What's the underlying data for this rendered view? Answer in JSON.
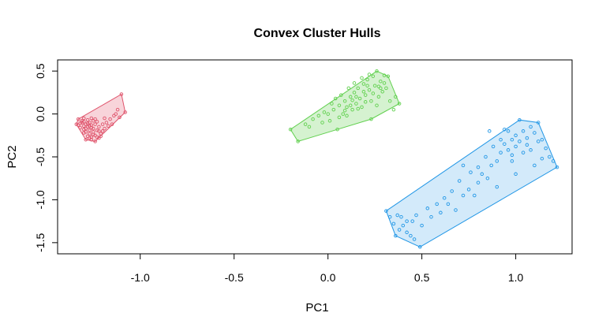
{
  "chart_data": {
    "type": "scatter",
    "title": "Convex Cluster Hulls",
    "xlabel": "PC1",
    "ylabel": "PC2",
    "xlim": [
      -1.44,
      1.3
    ],
    "ylim": [
      -1.63,
      0.63
    ],
    "x_ticks": [
      -1.0,
      -0.5,
      0.0,
      0.5,
      1.0
    ],
    "x_tick_labels": [
      "-1.0",
      "-0.5",
      "0.0",
      "0.5",
      "1.0"
    ],
    "y_ticks": [
      -1.5,
      -1.0,
      -0.5,
      0.0,
      0.5
    ],
    "y_tick_labels": [
      "-1.5",
      "-1.0",
      "-0.5",
      "0.0",
      "0.5"
    ],
    "grid": false,
    "legend": "none",
    "series": [
      {
        "color": "#DF536B",
        "fill": "#F8D4DA",
        "hull": [
          [
            -1.33,
            -0.06
          ],
          [
            -1.1,
            0.23
          ],
          [
            -1.08,
            0.02
          ],
          [
            -1.24,
            -0.32
          ],
          [
            -1.29,
            -0.3
          ],
          [
            -1.34,
            -0.12
          ]
        ],
        "points": [
          [
            -1.33,
            -0.06
          ],
          [
            -1.31,
            -0.08
          ],
          [
            -1.3,
            -0.05
          ],
          [
            -1.28,
            -0.07
          ],
          [
            -1.27,
            -0.1
          ],
          [
            -1.29,
            -0.12
          ],
          [
            -1.32,
            -0.11
          ],
          [
            -1.34,
            -0.12
          ],
          [
            -1.3,
            -0.14
          ],
          [
            -1.28,
            -0.15
          ],
          [
            -1.26,
            -0.13
          ],
          [
            -1.25,
            -0.17
          ],
          [
            -1.27,
            -0.19
          ],
          [
            -1.3,
            -0.18
          ],
          [
            -1.32,
            -0.16
          ],
          [
            -1.29,
            -0.21
          ],
          [
            -1.27,
            -0.23
          ],
          [
            -1.25,
            -0.21
          ],
          [
            -1.23,
            -0.19
          ],
          [
            -1.24,
            -0.25
          ],
          [
            -1.26,
            -0.27
          ],
          [
            -1.28,
            -0.26
          ],
          [
            -1.29,
            -0.3
          ],
          [
            -1.26,
            -0.3
          ],
          [
            -1.24,
            -0.32
          ],
          [
            -1.22,
            -0.28
          ],
          [
            -1.21,
            -0.23
          ],
          [
            -1.22,
            -0.15
          ],
          [
            -1.2,
            -0.12
          ],
          [
            -1.23,
            -0.09
          ],
          [
            -1.25,
            -0.08
          ],
          [
            -1.19,
            -0.17
          ],
          [
            -1.2,
            -0.2
          ],
          [
            -1.18,
            -0.1
          ],
          [
            -1.16,
            -0.06
          ],
          [
            -1.15,
            -0.12
          ],
          [
            -1.14,
            -0.02
          ],
          [
            -1.12,
            0.05
          ],
          [
            -1.1,
            0.23
          ],
          [
            -1.08,
            0.02
          ],
          [
            -1.11,
            -0.04
          ],
          [
            -1.26,
            -0.05
          ],
          [
            -1.31,
            -0.1
          ],
          [
            -1.28,
            -0.11
          ],
          [
            -1.26,
            -0.16
          ],
          [
            -1.24,
            -0.12
          ],
          [
            -1.22,
            -0.2
          ],
          [
            -1.25,
            -0.24
          ],
          [
            -1.27,
            -0.14
          ],
          [
            -1.3,
            -0.09
          ],
          [
            -1.29,
            -0.17
          ],
          [
            -1.21,
            -0.26
          ],
          [
            -1.23,
            -0.27
          ],
          [
            -1.17,
            -0.14
          ],
          [
            -1.19,
            -0.05
          ],
          [
            -1.13,
            0.0
          ],
          [
            -1.27,
            -0.28
          ],
          [
            -1.3,
            -0.22
          ],
          [
            -1.33,
            -0.13
          ],
          [
            -1.24,
            -0.06
          ]
        ]
      },
      {
        "color": "#61D04F",
        "fill": "#D5F2D0",
        "hull": [
          [
            -0.2,
            -0.18
          ],
          [
            0.26,
            0.5
          ],
          [
            0.32,
            0.44
          ],
          [
            0.38,
            0.12
          ],
          [
            0.23,
            -0.06
          ],
          [
            0.05,
            -0.18
          ],
          [
            -0.16,
            -0.32
          ]
        ],
        "points": [
          [
            -0.2,
            -0.18
          ],
          [
            -0.16,
            -0.32
          ],
          [
            -0.12,
            -0.12
          ],
          [
            -0.08,
            -0.06
          ],
          [
            -0.05,
            -0.02
          ],
          [
            -0.02,
            0.02
          ],
          [
            0.01,
            -0.08
          ],
          [
            0.03,
            0.05
          ],
          [
            0.05,
            -0.18
          ],
          [
            0.06,
            0.1
          ],
          [
            0.08,
            0.0
          ],
          [
            0.09,
            0.15
          ],
          [
            0.1,
            0.08
          ],
          [
            0.12,
            0.2
          ],
          [
            0.13,
            0.05
          ],
          [
            0.14,
            0.25
          ],
          [
            0.15,
            0.12
          ],
          [
            0.16,
            0.3
          ],
          [
            0.17,
            0.18
          ],
          [
            0.18,
            0.08
          ],
          [
            0.19,
            0.35
          ],
          [
            0.2,
            0.22
          ],
          [
            0.21,
            0.4
          ],
          [
            0.22,
            0.28
          ],
          [
            0.23,
            -0.06
          ],
          [
            0.23,
            0.15
          ],
          [
            0.24,
            0.44
          ],
          [
            0.25,
            0.33
          ],
          [
            0.26,
            0.5
          ],
          [
            0.27,
            0.2
          ],
          [
            0.28,
            0.38
          ],
          [
            0.29,
            0.26
          ],
          [
            0.3,
            0.45
          ],
          [
            0.31,
            0.3
          ],
          [
            0.32,
            0.44
          ],
          [
            0.33,
            0.15
          ],
          [
            0.35,
            0.05
          ],
          [
            0.36,
            0.2
          ],
          [
            0.38,
            0.12
          ],
          [
            0.02,
            0.12
          ],
          [
            0.04,
            0.18
          ],
          [
            0.07,
            0.22
          ],
          [
            0.11,
            0.3
          ],
          [
            0.14,
            0.36
          ],
          [
            0.18,
            0.42
          ],
          [
            0.22,
            0.46
          ],
          [
            0.0,
            0.0
          ],
          [
            -0.03,
            -0.1
          ],
          [
            0.06,
            -0.04
          ],
          [
            0.1,
            -0.02
          ],
          [
            0.12,
            0.1
          ],
          [
            0.16,
            0.06
          ],
          [
            0.2,
            0.14
          ],
          [
            0.24,
            0.24
          ],
          [
            0.27,
            0.32
          ],
          [
            0.3,
            0.36
          ],
          [
            0.15,
            0.2
          ],
          [
            0.19,
            0.26
          ],
          [
            0.09,
            0.04
          ],
          [
            0.13,
            0.16
          ],
          [
            -0.1,
            -0.15
          ],
          [
            0.26,
            0.1
          ],
          [
            0.28,
            0.3
          ],
          [
            0.21,
            0.33
          ]
        ]
      },
      {
        "color": "#2297E6",
        "fill": "#D3EAFA",
        "hull": [
          [
            0.31,
            -1.13
          ],
          [
            1.02,
            -0.07
          ],
          [
            1.12,
            -0.1
          ],
          [
            1.22,
            -0.62
          ],
          [
            0.49,
            -1.55
          ],
          [
            0.36,
            -1.42
          ]
        ],
        "points": [
          [
            0.31,
            -1.13
          ],
          [
            0.33,
            -1.2
          ],
          [
            0.35,
            -1.28
          ],
          [
            0.36,
            -1.42
          ],
          [
            0.38,
            -1.35
          ],
          [
            0.4,
            -1.3
          ],
          [
            0.42,
            -1.38
          ],
          [
            0.44,
            -1.42
          ],
          [
            0.46,
            -1.46
          ],
          [
            0.49,
            -1.55
          ],
          [
            0.45,
            -1.25
          ],
          [
            0.5,
            -1.3
          ],
          [
            0.55,
            -1.2
          ],
          [
            0.6,
            -1.15
          ],
          [
            0.64,
            -1.05
          ],
          [
            0.68,
            -1.12
          ],
          [
            0.72,
            -0.95
          ],
          [
            0.75,
            -0.88
          ],
          [
            0.78,
            -0.95
          ],
          [
            0.8,
            -0.8
          ],
          [
            0.82,
            -0.7
          ],
          [
            0.85,
            -0.75
          ],
          [
            0.87,
            -0.6
          ],
          [
            0.9,
            -0.55
          ],
          [
            0.92,
            -0.45
          ],
          [
            0.94,
            -0.35
          ],
          [
            0.96,
            -0.42
          ],
          [
            0.98,
            -0.3
          ],
          [
            1.0,
            -0.25
          ],
          [
            1.02,
            -0.07
          ],
          [
            1.04,
            -0.2
          ],
          [
            1.06,
            -0.28
          ],
          [
            1.08,
            -0.15
          ],
          [
            1.1,
            -0.22
          ],
          [
            1.12,
            -0.1
          ],
          [
            1.14,
            -0.3
          ],
          [
            1.16,
            -0.4
          ],
          [
            1.18,
            -0.5
          ],
          [
            1.2,
            -0.55
          ],
          [
            1.22,
            -0.62
          ],
          [
            0.96,
            -0.2
          ],
          [
            0.98,
            -0.48
          ],
          [
            1.0,
            -0.38
          ],
          [
            1.02,
            -0.32
          ],
          [
            1.04,
            -0.45
          ],
          [
            1.06,
            -0.36
          ],
          [
            0.92,
            -0.3
          ],
          [
            0.88,
            -0.38
          ],
          [
            0.84,
            -0.5
          ],
          [
            0.8,
            -0.62
          ],
          [
            0.76,
            -0.68
          ],
          [
            0.7,
            -0.78
          ],
          [
            0.66,
            -0.9
          ],
          [
            0.62,
            -0.98
          ],
          [
            0.58,
            -1.05
          ],
          [
            0.53,
            -1.1
          ],
          [
            0.47,
            -1.18
          ],
          [
            0.42,
            -1.25
          ],
          [
            0.39,
            -1.2
          ],
          [
            0.37,
            -1.18
          ],
          [
            1.1,
            -0.6
          ],
          [
            1.0,
            -0.7
          ],
          [
            0.9,
            -0.85
          ],
          [
            0.86,
            -0.2
          ],
          [
            0.94,
            -0.18
          ],
          [
            1.08,
            -0.42
          ],
          [
            1.12,
            -0.32
          ],
          [
            1.14,
            -0.52
          ],
          [
            0.98,
            -0.55
          ],
          [
            0.72,
            -0.6
          ]
        ]
      }
    ]
  }
}
